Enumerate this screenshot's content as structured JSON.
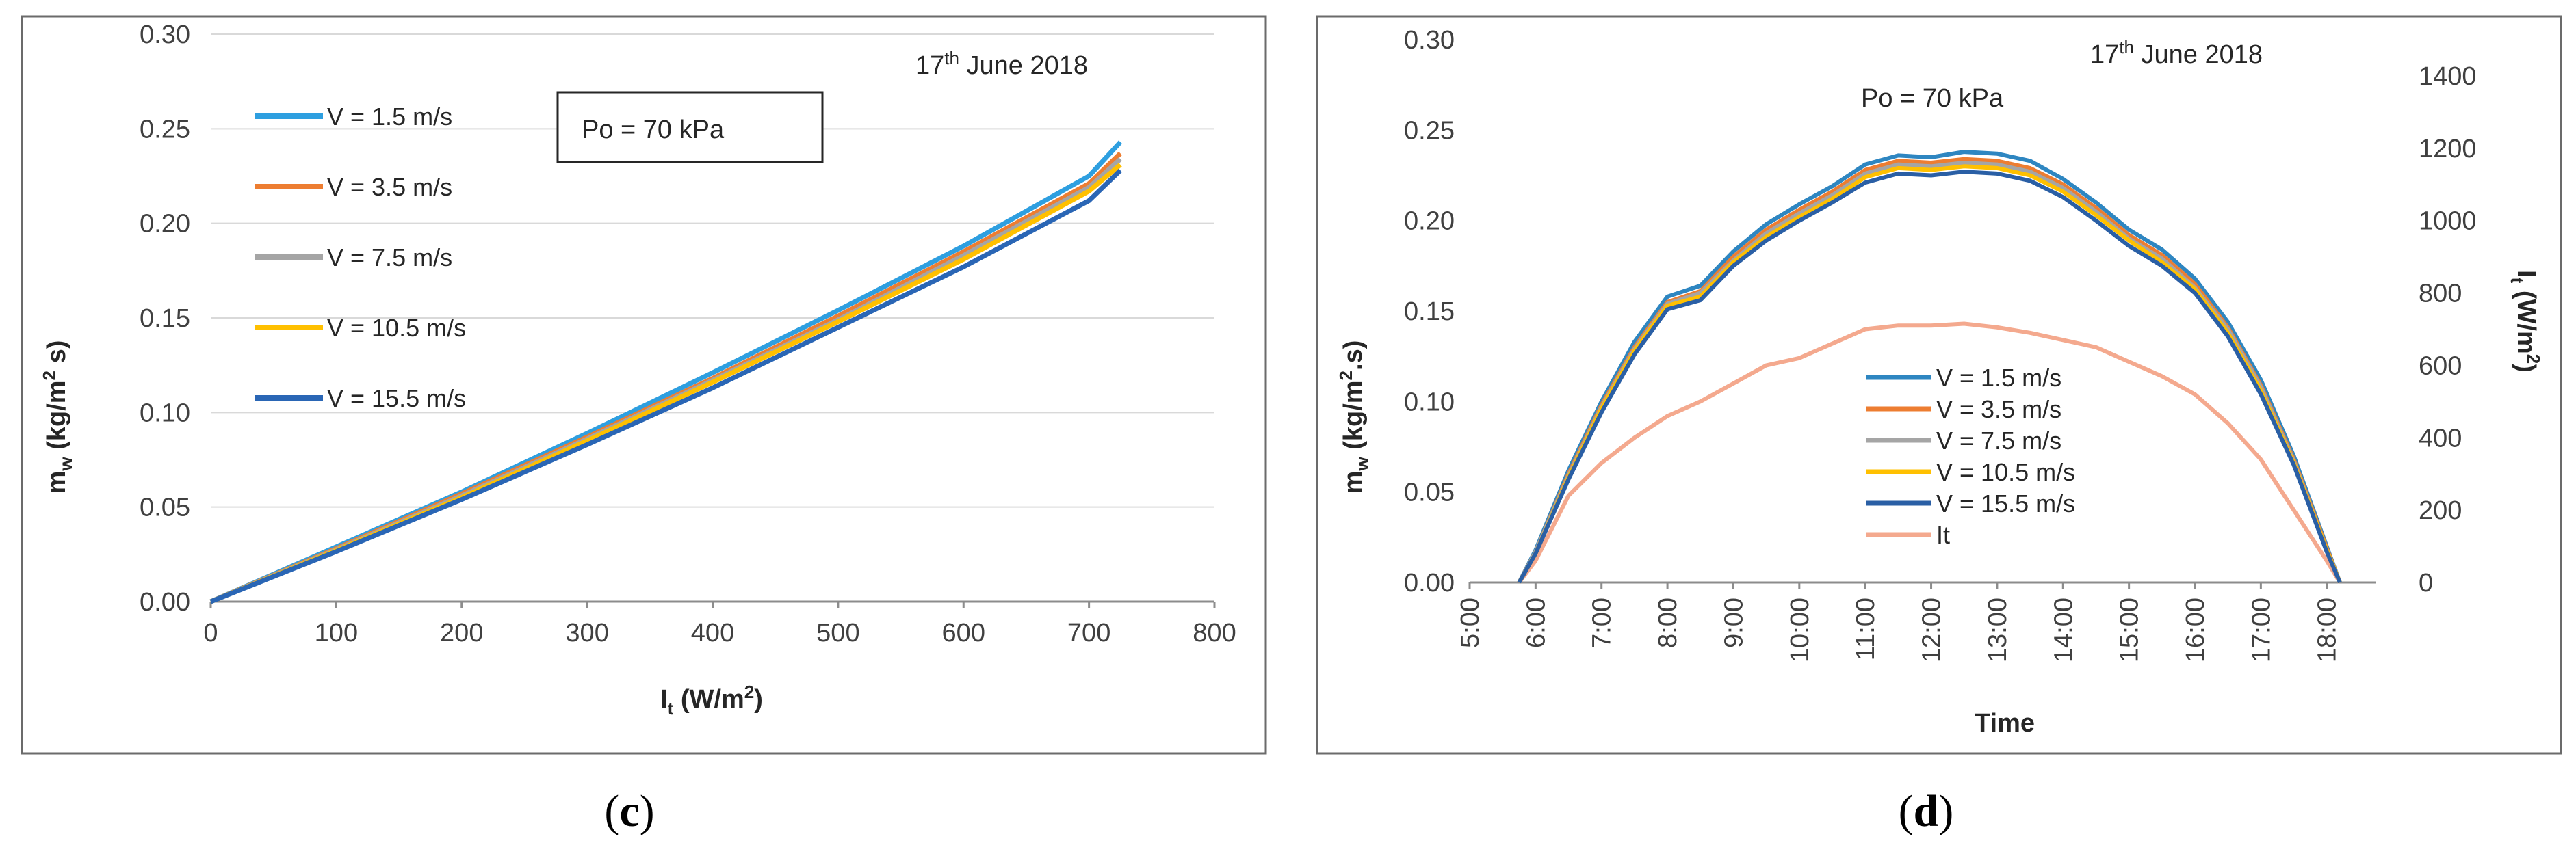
{
  "chart_data": [
    {
      "type": "line",
      "panel_label": "(c)",
      "date_annotation": {
        "prefix": "17",
        "superscript": "th",
        "suffix": " June 2018"
      },
      "po_label": "Po = 70 kPa",
      "ylabel": {
        "main": "m",
        "sub": "w",
        "unit_open": " (kg/m",
        "sup": "2",
        "unit_close": " s)"
      },
      "xlabel": {
        "main": "I",
        "sub": "t",
        "unit_open": " (W/m",
        "sup": "2",
        "unit_close": ")"
      },
      "xlim": [
        0,
        800
      ],
      "ylim": [
        0,
        0.3
      ],
      "x_ticks": [
        0,
        100,
        200,
        300,
        400,
        500,
        600,
        700,
        800
      ],
      "y_ticks": [
        "0.00",
        "0.05",
        "0.10",
        "0.15",
        "0.20",
        "0.25",
        "0.30"
      ],
      "series": [
        {
          "name": "V = 1.5 m/s",
          "color": "#2e9fe0",
          "x": [
            0,
            100,
            200,
            300,
            400,
            500,
            600,
            700,
            725
          ],
          "y": [
            0,
            0.029,
            0.058,
            0.089,
            0.121,
            0.154,
            0.188,
            0.225,
            0.243
          ]
        },
        {
          "name": "V = 3.5 m/s",
          "color": "#ed7d31",
          "x": [
            0,
            100,
            200,
            300,
            400,
            500,
            600,
            700,
            725
          ],
          "y": [
            0,
            0.028,
            0.057,
            0.087,
            0.118,
            0.151,
            0.185,
            0.221,
            0.237
          ]
        },
        {
          "name": "V = 7.5 m/s",
          "color": "#a5a5a5",
          "x": [
            0,
            100,
            200,
            300,
            400,
            500,
            600,
            700,
            725
          ],
          "y": [
            0,
            0.0275,
            0.056,
            0.086,
            0.117,
            0.149,
            0.183,
            0.219,
            0.234
          ]
        },
        {
          "name": "V = 10.5 m/s",
          "color": "#ffc000",
          "x": [
            0,
            100,
            200,
            300,
            400,
            500,
            600,
            700,
            725
          ],
          "y": [
            0,
            0.027,
            0.055,
            0.085,
            0.116,
            0.148,
            0.181,
            0.217,
            0.231
          ]
        },
        {
          "name": "V = 15.5 m/s",
          "color": "#2a66b5",
          "x": [
            0,
            100,
            200,
            300,
            400,
            500,
            600,
            700,
            725
          ],
          "y": [
            0,
            0.0265,
            0.054,
            0.083,
            0.113,
            0.145,
            0.177,
            0.212,
            0.228
          ]
        }
      ]
    },
    {
      "type": "line",
      "panel_label": "(d)",
      "date_annotation": {
        "prefix": "17",
        "superscript": "th",
        "suffix": " June 2018"
      },
      "po_label": "Po = 70 kPa",
      "ylabel": {
        "main": "m",
        "sub": "w",
        "unit_open": " (kg/m",
        "sup": "2",
        "unit_close": ".s)"
      },
      "y2label": {
        "main": "I",
        "sub": "t",
        "unit_open": " (W/m",
        "sup": "2",
        "unit_close": ")"
      },
      "xlabel": "Time",
      "x_ticks": [
        "5:00",
        "6:00",
        "7:00",
        "8:00",
        "9:00",
        "10:00",
        "11:00",
        "12:00",
        "13:00",
        "14:00",
        "15:00",
        "16:00",
        "17:00",
        "18:00"
      ],
      "xlim_hours": [
        5,
        18.75
      ],
      "ylim": [
        0,
        0.3
      ],
      "y2lim": [
        0,
        1500
      ],
      "y_ticks": [
        "0.00",
        "0.05",
        "0.10",
        "0.15",
        "0.20",
        "0.25",
        "0.30"
      ],
      "y2_ticks": [
        "0",
        "200",
        "400",
        "600",
        "800",
        "1000",
        "1200",
        "1400"
      ],
      "hours": [
        5.75,
        6.0,
        6.5,
        7.0,
        7.5,
        8.0,
        8.5,
        9.0,
        9.5,
        10.0,
        10.5,
        11.0,
        11.5,
        12.0,
        12.5,
        13.0,
        13.5,
        14.0,
        14.5,
        15.0,
        15.5,
        16.0,
        16.5,
        17.0,
        17.5,
        18.0,
        18.2
      ],
      "series": [
        {
          "name": "V = 1.5 m/s",
          "color": "#2e86c1",
          "axis": "left",
          "values": [
            0,
            0.018,
            0.062,
            0.1,
            0.133,
            0.158,
            0.164,
            0.183,
            0.198,
            0.209,
            0.219,
            0.231,
            0.236,
            0.235,
            0.238,
            0.237,
            0.233,
            0.223,
            0.21,
            0.195,
            0.184,
            0.168,
            0.144,
            0.112,
            0.07,
            0.02,
            0
          ]
        },
        {
          "name": "V = 3.5 m/s",
          "color": "#ed7d31",
          "axis": "left",
          "values": [
            0,
            0.017,
            0.06,
            0.098,
            0.13,
            0.155,
            0.161,
            0.18,
            0.195,
            0.206,
            0.216,
            0.228,
            0.233,
            0.232,
            0.234,
            0.233,
            0.229,
            0.22,
            0.207,
            0.192,
            0.181,
            0.165,
            0.141,
            0.109,
            0.068,
            0.019,
            0
          ]
        },
        {
          "name": "V = 7.5 m/s",
          "color": "#a5a5a5",
          "axis": "left",
          "values": [
            0,
            0.017,
            0.059,
            0.097,
            0.129,
            0.154,
            0.16,
            0.178,
            0.193,
            0.204,
            0.214,
            0.226,
            0.231,
            0.23,
            0.232,
            0.231,
            0.227,
            0.218,
            0.205,
            0.19,
            0.179,
            0.163,
            0.14,
            0.108,
            0.067,
            0.018,
            0
          ]
        },
        {
          "name": "V = 10.5 m/s",
          "color": "#ffc000",
          "axis": "left",
          "values": [
            0,
            0.016,
            0.058,
            0.096,
            0.128,
            0.153,
            0.158,
            0.177,
            0.191,
            0.202,
            0.212,
            0.224,
            0.229,
            0.228,
            0.23,
            0.229,
            0.225,
            0.216,
            0.203,
            0.189,
            0.177,
            0.162,
            0.138,
            0.106,
            0.066,
            0.018,
            0
          ]
        },
        {
          "name": "V = 15.5 m/s",
          "color": "#2a5fa5",
          "axis": "left",
          "values": [
            0,
            0.016,
            0.057,
            0.094,
            0.126,
            0.151,
            0.156,
            0.175,
            0.189,
            0.2,
            0.21,
            0.221,
            0.226,
            0.225,
            0.227,
            0.226,
            0.222,
            0.213,
            0.2,
            0.186,
            0.175,
            0.16,
            0.136,
            0.104,
            0.065,
            0.017,
            0
          ]
        },
        {
          "name": "It",
          "color": "#f4a98e",
          "axis": "right",
          "values": [
            0,
            60,
            240,
            330,
            400,
            460,
            500,
            550,
            600,
            620,
            660,
            700,
            710,
            710,
            715,
            705,
            690,
            670,
            650,
            610,
            570,
            520,
            440,
            340,
            200,
            60,
            0
          ]
        }
      ]
    }
  ]
}
